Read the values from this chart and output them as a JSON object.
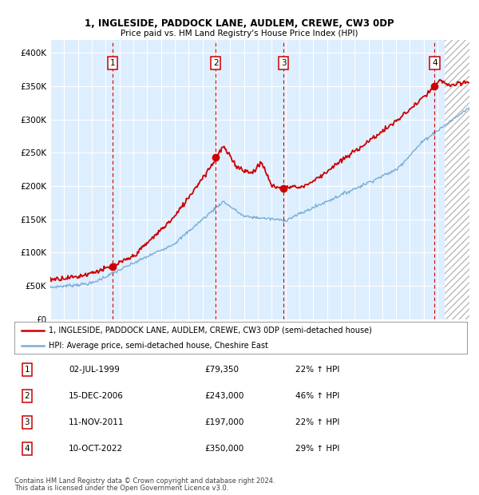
{
  "title1": "1, INGLESIDE, PADDOCK LANE, AUDLEM, CREWE, CW3 0DP",
  "title2": "Price paid vs. HM Land Registry's House Price Index (HPI)",
  "ylim": [
    0,
    420000
  ],
  "yticks": [
    0,
    50000,
    100000,
    150000,
    200000,
    250000,
    300000,
    350000,
    400000
  ],
  "ytick_labels": [
    "£0",
    "£50K",
    "£100K",
    "£150K",
    "£200K",
    "£250K",
    "£300K",
    "£350K",
    "£400K"
  ],
  "sale_year_nums": [
    1999.5,
    2006.96,
    2011.86,
    2022.78
  ],
  "sale_prices": [
    79350,
    243000,
    197000,
    350000
  ],
  "sale_labels": [
    "1",
    "2",
    "3",
    "4"
  ],
  "legend_line1": "1, INGLESIDE, PADDOCK LANE, AUDLEM, CREWE, CW3 0DP (semi-detached house)",
  "legend_line2": "HPI: Average price, semi-detached house, Cheshire East",
  "table_entries": [
    {
      "num": "1",
      "date": "02-JUL-1999",
      "price": "£79,350",
      "pct": "22% ↑ HPI"
    },
    {
      "num": "2",
      "date": "15-DEC-2006",
      "price": "£243,000",
      "pct": "46% ↑ HPI"
    },
    {
      "num": "3",
      "date": "11-NOV-2011",
      "price": "£197,000",
      "pct": "22% ↑ HPI"
    },
    {
      "num": "4",
      "date": "10-OCT-2022",
      "price": "£350,000",
      "pct": "29% ↑ HPI"
    }
  ],
  "footnote1": "Contains HM Land Registry data © Crown copyright and database right 2024.",
  "footnote2": "This data is licensed under the Open Government Licence v3.0.",
  "red_color": "#cc0000",
  "blue_color": "#7aadd4",
  "bg_color": "#ddeeff",
  "grid_color": "#ffffff",
  "hatch_color": "#bbbbbb",
  "xlim_start": 1995,
  "xlim_end": 2025.3,
  "hatch_start": 2023.5
}
